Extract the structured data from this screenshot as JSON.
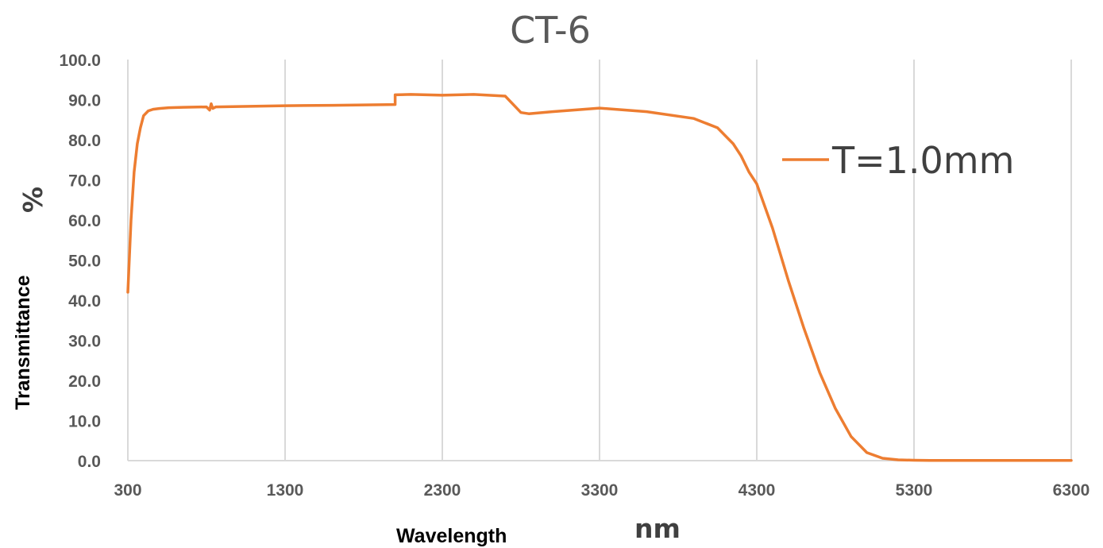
{
  "chart_data": {
    "type": "line",
    "title": "CT-6",
    "xlabel": "Wavelength",
    "xlabel_unit": "nm",
    "ylabel": "Transmittance",
    "ylabel_unit": "%",
    "xlim": [
      300,
      6300
    ],
    "ylim": [
      0,
      100
    ],
    "x_ticks": [
      300,
      1300,
      2300,
      3300,
      4300,
      5300,
      6300
    ],
    "y_ticks": [
      0.0,
      10.0,
      20.0,
      30.0,
      40.0,
      50.0,
      60.0,
      70.0,
      80.0,
      90.0,
      100.0
    ],
    "x_tick_labels": [
      "300",
      "1300",
      "2300",
      "3300",
      "4300",
      "5300",
      "6300"
    ],
    "y_tick_labels": [
      "0.0",
      "10.0",
      "20.0",
      "30.0",
      "40.0",
      "50.0",
      "60.0",
      "70.0",
      "80.0",
      "90.0",
      "100.0"
    ],
    "grid": "vertical",
    "legend_position": "right",
    "series": [
      {
        "name": "T=1.0mm",
        "color": "#ed7d31",
        "x": [
          300,
          320,
          340,
          360,
          380,
          400,
          430,
          460,
          500,
          560,
          650,
          800,
          820,
          830,
          840,
          860,
          1000,
          1300,
          1600,
          2000,
          2000,
          2100,
          2300,
          2500,
          2700,
          2800,
          2850,
          3000,
          3300,
          3600,
          3900,
          4050,
          4150,
          4200,
          4250,
          4300,
          4400,
          4500,
          4600,
          4700,
          4800,
          4900,
          5000,
          5100,
          5200,
          5300,
          5400,
          5600,
          6000,
          6300
        ],
        "y": [
          42,
          60,
          72,
          79,
          83,
          86,
          87.2,
          87.6,
          87.8,
          88,
          88.1,
          88.2,
          87.4,
          89,
          87.8,
          88.2,
          88.3,
          88.5,
          88.6,
          88.8,
          91.2,
          91.3,
          91.1,
          91.3,
          90.9,
          86.8,
          86.5,
          87.0,
          87.9,
          87.0,
          85.3,
          83.0,
          79.0,
          76.0,
          72.0,
          69.0,
          58.0,
          45.0,
          33.0,
          22.0,
          13.0,
          6.0,
          2.0,
          0.6,
          0.2,
          0.1,
          0.05,
          0.05,
          0.05,
          0.05
        ]
      }
    ]
  }
}
